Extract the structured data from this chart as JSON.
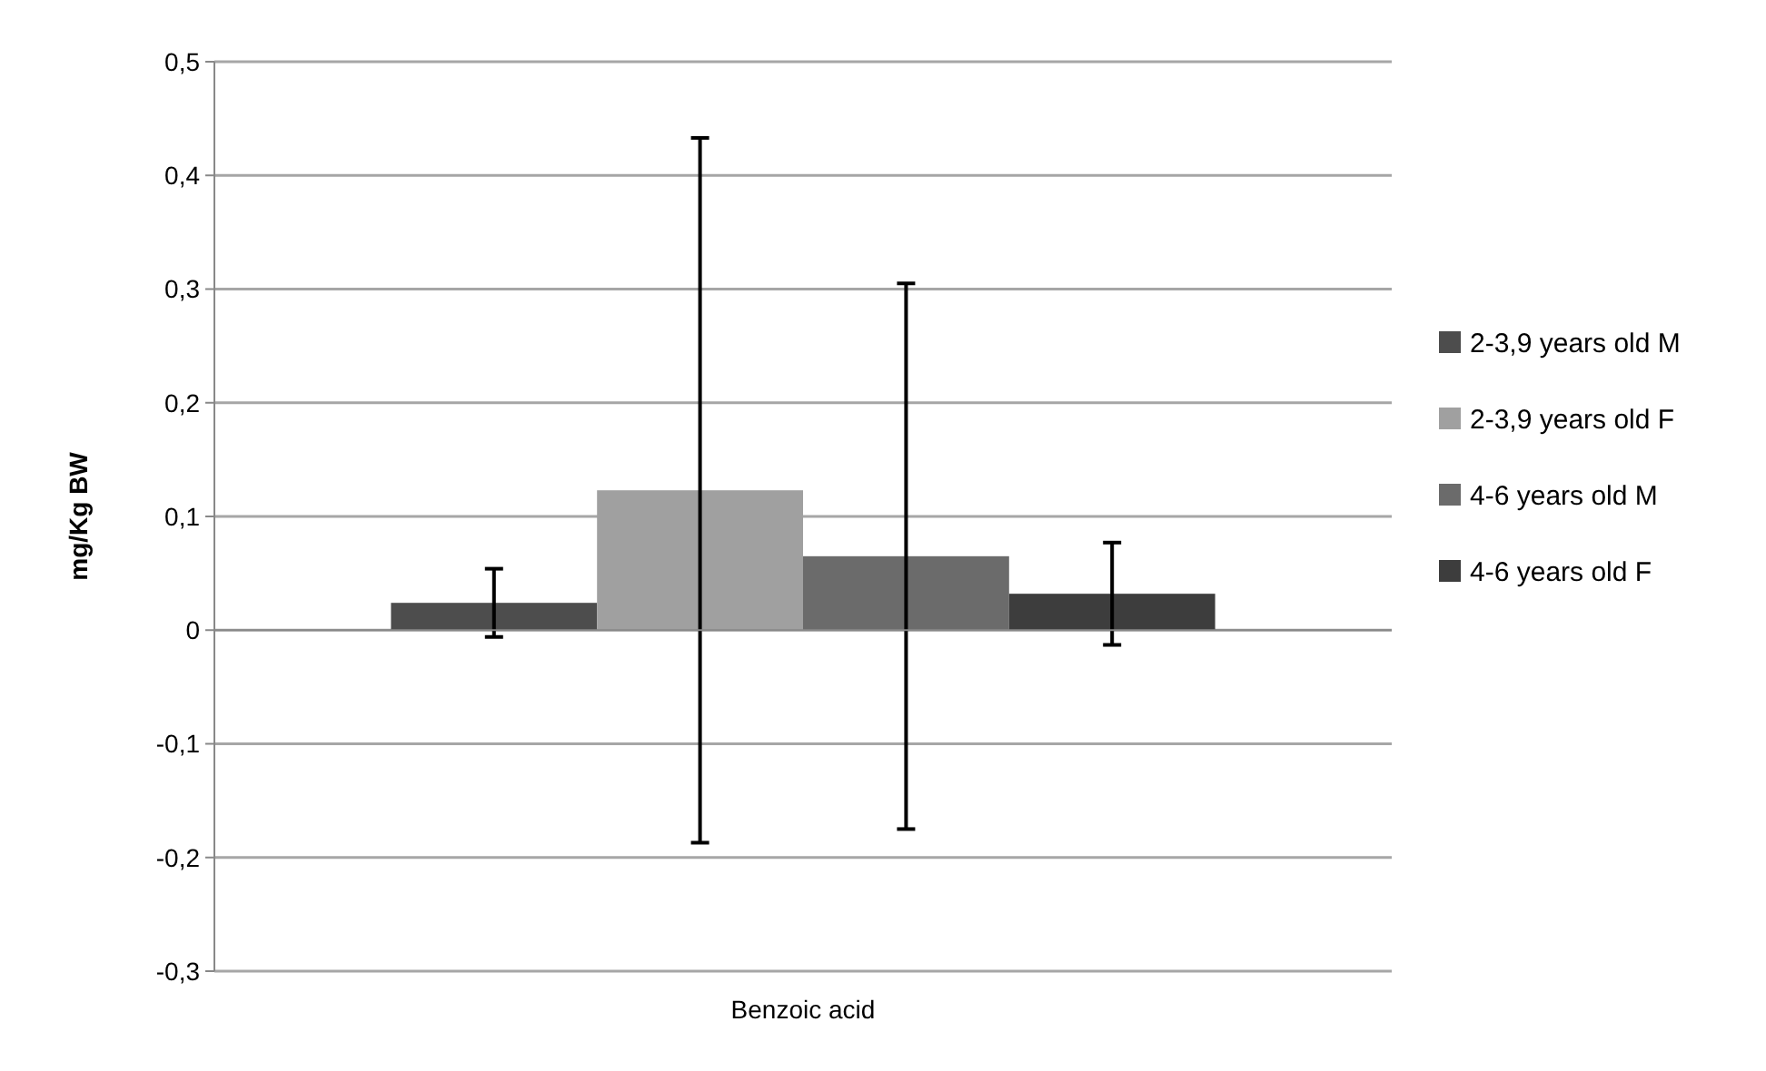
{
  "chart_data": {
    "type": "bar",
    "ylabel": "mg/Kg BW",
    "categories": [
      "Benzoic acid"
    ],
    "series": [
      {
        "name": "2-3,9 years old M",
        "color": "#4d4d4d",
        "values": [
          0.024
        ],
        "errors": [
          0.03
        ]
      },
      {
        "name": "2-3,9 years old F",
        "color": "#a0a0a0",
        "values": [
          0.123
        ],
        "errors": [
          0.31
        ]
      },
      {
        "name": "4-6 years old M",
        "color": "#6b6b6b",
        "values": [
          0.065
        ],
        "errors": [
          0.24
        ]
      },
      {
        "name": "4-6 years old F",
        "color": "#3d3d3d",
        "values": [
          0.032
        ],
        "errors": [
          0.045
        ]
      }
    ],
    "ylim": [
      -0.3,
      0.5
    ],
    "yticks": [
      {
        "value": -0.3,
        "label": "-0,3"
      },
      {
        "value": -0.2,
        "label": "-0,2"
      },
      {
        "value": -0.1,
        "label": "-0,1"
      },
      {
        "value": 0,
        "label": "0"
      },
      {
        "value": 0.1,
        "label": "0,1"
      },
      {
        "value": 0.2,
        "label": "0,2"
      },
      {
        "value": 0.3,
        "label": "0,3"
      },
      {
        "value": 0.4,
        "label": "0,4"
      },
      {
        "value": 0.5,
        "label": "0,5"
      }
    ],
    "grid": "y",
    "legend": "right"
  }
}
